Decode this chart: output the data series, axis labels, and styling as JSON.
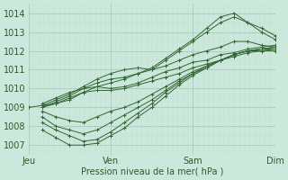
{
  "title": "",
  "xlabel": "Pression niveau de la mer( hPa )",
  "bg_color": "#cce8dc",
  "grid_major_color": "#aaccbb",
  "grid_minor_color": "#bbddd0",
  "line_color": "#336633",
  "ylim": [
    1006.5,
    1014.5
  ],
  "xlim": [
    0,
    288
  ],
  "x_ticks": [
    0,
    96,
    192,
    288
  ],
  "x_tick_labels": [
    "Jeu",
    "Ven",
    "Sam",
    "Dim"
  ],
  "yticks": [
    1007,
    1008,
    1009,
    1010,
    1011,
    1012,
    1013,
    1014
  ],
  "series": [
    {
      "x": [
        0,
        16,
        32,
        48,
        64,
        80,
        96,
        112,
        128,
        144,
        160,
        176,
        192,
        208,
        224,
        240,
        256,
        272,
        288
      ],
      "y": [
        1009.0,
        1009.1,
        1009.2,
        1009.5,
        1009.8,
        1009.9,
        1009.9,
        1010.0,
        1010.2,
        1010.4,
        1010.6,
        1010.8,
        1011.1,
        1011.3,
        1011.5,
        1011.8,
        1012.0,
        1012.1,
        1012.2
      ]
    },
    {
      "x": [
        16,
        32,
        48,
        64,
        80,
        96,
        112,
        128,
        144,
        160,
        176,
        192,
        208,
        224,
        240,
        256,
        272,
        288
      ],
      "y": [
        1009.2,
        1009.5,
        1009.8,
        1010.0,
        1010.1,
        1010.0,
        1010.1,
        1010.3,
        1010.6,
        1010.9,
        1011.1,
        1011.4,
        1011.5,
        1011.8,
        1011.9,
        1012.1,
        1012.2,
        1012.3
      ]
    },
    {
      "x": [
        16,
        32,
        48,
        64,
        80,
        96,
        112,
        128,
        144,
        160,
        176,
        192,
        208,
        224,
        240,
        256,
        272,
        288
      ],
      "y": [
        1008.8,
        1008.5,
        1008.3,
        1008.2,
        1008.5,
        1008.8,
        1009.0,
        1009.3,
        1009.7,
        1010.1,
        1010.5,
        1010.9,
        1011.2,
        1011.5,
        1011.8,
        1012.0,
        1012.1,
        1012.2
      ]
    },
    {
      "x": [
        16,
        32,
        48,
        64,
        80,
        96,
        112,
        128,
        144,
        160,
        176,
        192,
        208,
        224,
        240,
        256,
        272,
        288
      ],
      "y": [
        1008.5,
        1008.0,
        1007.8,
        1007.6,
        1007.8,
        1008.2,
        1008.6,
        1009.0,
        1009.4,
        1009.9,
        1010.4,
        1010.8,
        1011.2,
        1011.5,
        1011.8,
        1012.0,
        1012.1,
        1012.1
      ]
    },
    {
      "x": [
        16,
        32,
        48,
        64,
        80,
        96,
        112,
        128,
        144,
        160,
        176,
        192,
        208,
        224,
        240,
        256,
        272,
        288
      ],
      "y": [
        1008.2,
        1007.8,
        1007.5,
        1007.2,
        1007.3,
        1007.7,
        1008.2,
        1008.7,
        1009.2,
        1009.8,
        1010.3,
        1010.8,
        1011.1,
        1011.5,
        1011.8,
        1012.0,
        1012.0,
        1012.1
      ]
    },
    {
      "x": [
        16,
        32,
        48,
        64,
        80,
        96,
        112,
        128,
        144,
        160,
        176,
        192,
        208,
        224,
        240,
        256,
        272,
        288
      ],
      "y": [
        1007.8,
        1007.4,
        1007.0,
        1007.0,
        1007.1,
        1007.5,
        1007.9,
        1008.5,
        1009.0,
        1009.6,
        1010.2,
        1010.7,
        1011.1,
        1011.5,
        1011.7,
        1011.9,
        1012.0,
        1012.0
      ]
    },
    {
      "x": [
        16,
        32,
        48,
        64,
        80,
        96,
        112,
        128,
        144,
        160,
        176,
        192,
        208,
        224,
        240,
        256,
        272,
        288
      ],
      "y": [
        1009.0,
        1009.3,
        1009.6,
        1010.0,
        1010.3,
        1010.5,
        1010.6,
        1010.8,
        1011.0,
        1011.5,
        1012.0,
        1012.5,
        1013.0,
        1013.5,
        1013.8,
        1013.5,
        1013.2,
        1012.8
      ]
    },
    {
      "x": [
        16,
        32,
        48,
        64,
        80,
        96,
        112,
        128,
        144,
        160,
        176,
        192,
        208,
        224,
        240,
        256,
        272,
        288
      ],
      "y": [
        1009.0,
        1009.2,
        1009.4,
        1009.8,
        1010.1,
        1010.3,
        1010.5,
        1010.8,
        1011.1,
        1011.6,
        1012.1,
        1012.6,
        1013.2,
        1013.8,
        1014.0,
        1013.5,
        1013.0,
        1012.6
      ]
    },
    {
      "x": [
        16,
        32,
        48,
        64,
        80,
        96,
        112,
        128,
        144,
        160,
        176,
        192,
        208,
        224,
        240,
        256,
        272,
        288
      ],
      "y": [
        1009.1,
        1009.4,
        1009.7,
        1010.1,
        1010.5,
        1010.8,
        1011.0,
        1011.1,
        1011.0,
        1011.2,
        1011.5,
        1011.8,
        1012.0,
        1012.2,
        1012.5,
        1012.5,
        1012.3,
        1012.2
      ]
    }
  ]
}
